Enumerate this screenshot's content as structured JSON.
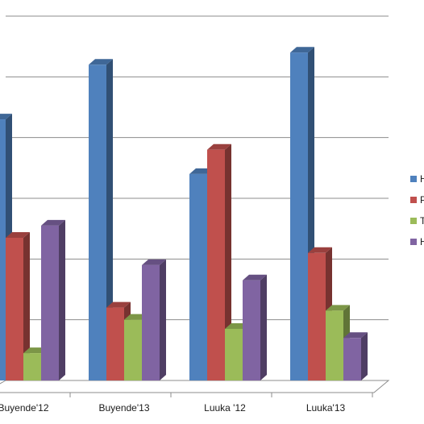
{
  "chart_data": {
    "type": "bar",
    "categories": [
      "Buyende'12",
      "Buyende'13",
      "Luuka '12",
      "Luuka'13"
    ],
    "series": [
      {
        "name": "H",
        "color": "#4f81bd",
        "values": [
          86,
          104,
          68,
          108
        ]
      },
      {
        "name": "P",
        "color": "#c0504d",
        "values": [
          47,
          24,
          76,
          42
        ]
      },
      {
        "name": "T",
        "color": "#9bbb59",
        "values": [
          9,
          20,
          17,
          23
        ]
      },
      {
        "name": "H",
        "color": "#8064a2",
        "values": [
          51,
          38,
          33,
          14
        ]
      }
    ],
    "ylim": [
      0,
      120
    ],
    "yticks": [
      0,
      20,
      40,
      60,
      80,
      100,
      120
    ],
    "grid": true,
    "legend_position": "right",
    "title": "",
    "xlabel": "",
    "ylabel": ""
  }
}
